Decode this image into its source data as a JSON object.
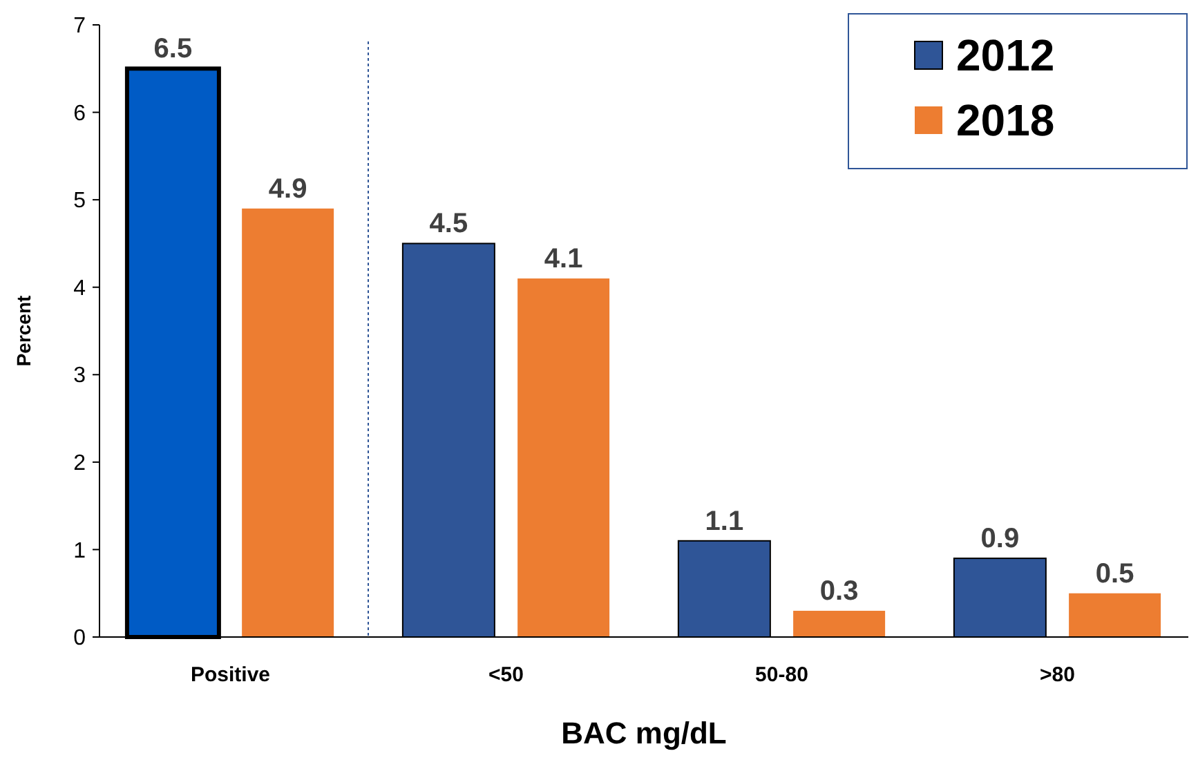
{
  "chart_data": {
    "type": "bar",
    "xlabel": "BAC mg/dL",
    "ylabel": "Percent",
    "categories": [
      "Positive",
      "<50",
      "50-80",
      ">80"
    ],
    "series": [
      {
        "name": "2012",
        "color": "#2f5597",
        "colors": [
          "#005bc5",
          "#2f5597",
          "#2f5597",
          "#2f5597"
        ],
        "values": [
          6.5,
          4.5,
          1.1,
          0.9
        ]
      },
      {
        "name": "2018",
        "color": "#ed7d31",
        "values": [
          4.9,
          4.1,
          0.3,
          0.5
        ]
      }
    ],
    "ylim": [
      0,
      7
    ],
    "yticks": [
      0,
      1,
      2,
      3,
      4,
      5,
      6,
      7
    ],
    "grid": false,
    "legend": "top right",
    "data_labels": true
  }
}
